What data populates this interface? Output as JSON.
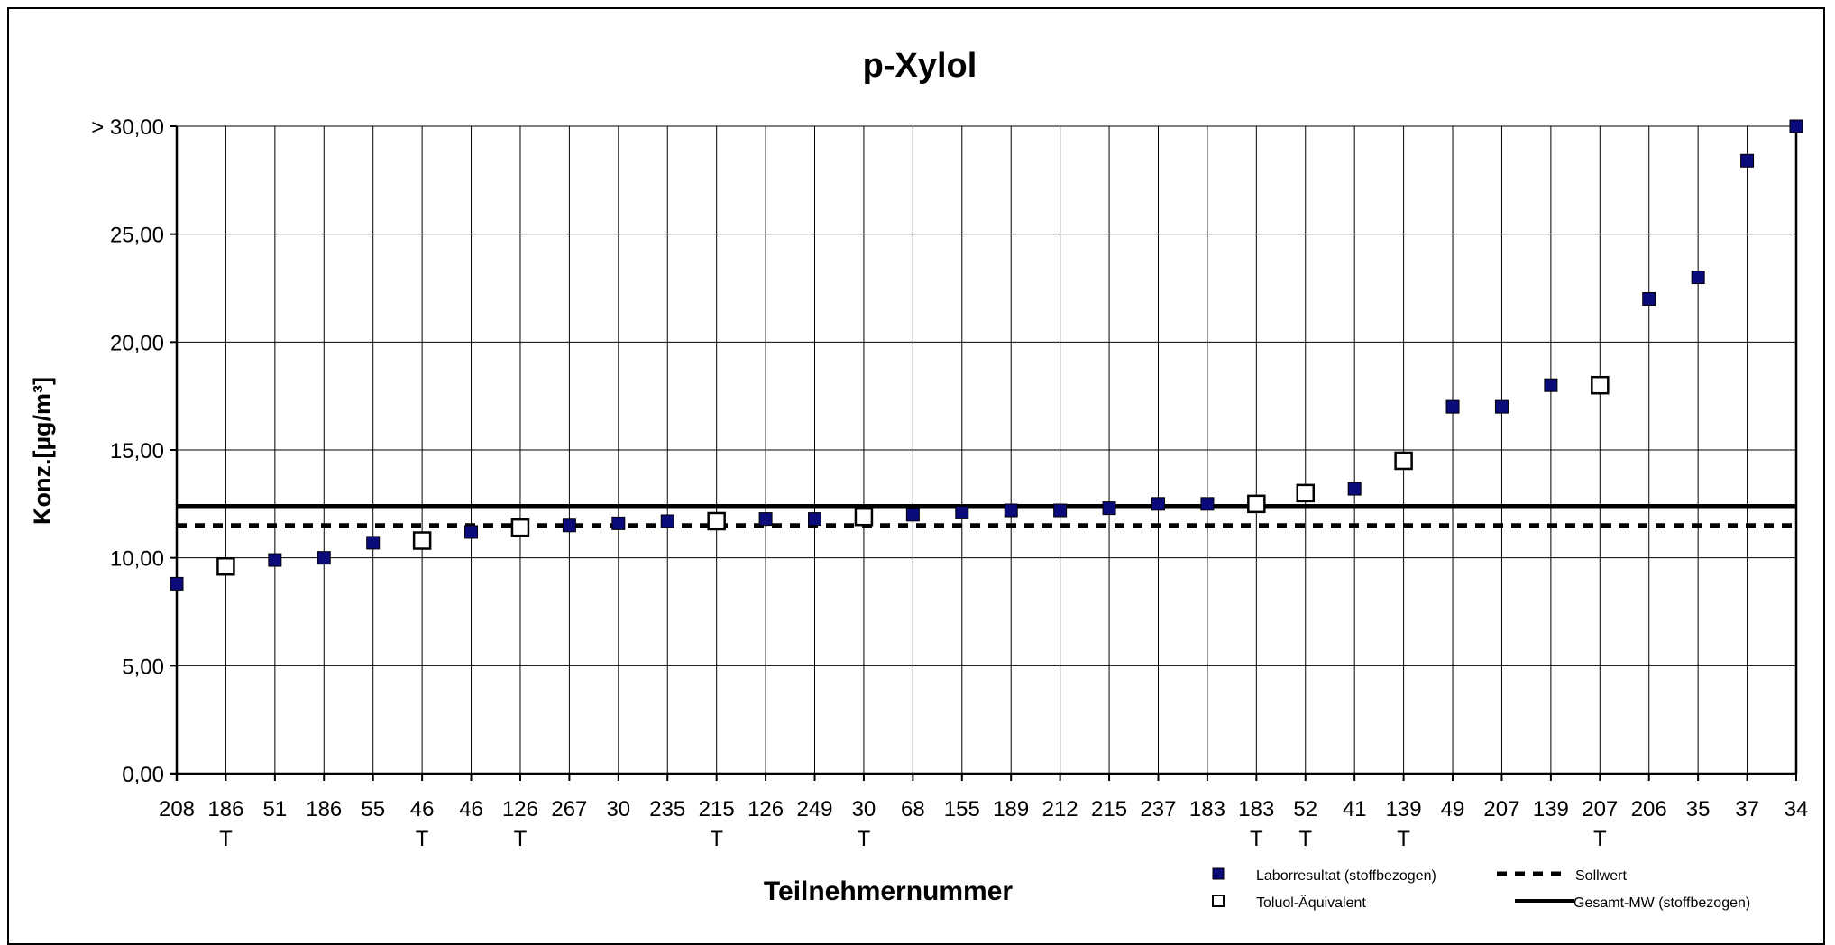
{
  "chart_data": {
    "type": "scatter",
    "title": "p-Xylol",
    "xlabel": "Teilnehmernummer",
    "ylabel": "Konz.[µg/m³]",
    "ylim": [
      0,
      30
    ],
    "yticks": [
      "0,00",
      "5,00",
      "10,00",
      "15,00",
      "20,00",
      "25,00",
      "> 30,00"
    ],
    "grid": true,
    "categories": [
      "208",
      "186",
      "51",
      "186",
      "55",
      "46",
      "46",
      "126",
      "267",
      "30",
      "235",
      "215",
      "126",
      "249",
      "30",
      "68",
      "155",
      "189",
      "212",
      "215",
      "237",
      "183",
      "183",
      "52",
      "41",
      "139",
      "49",
      "207",
      "139",
      "207",
      "206",
      "35",
      "37",
      "34"
    ],
    "sublabels": [
      "",
      "T",
      "",
      "",
      "",
      "T",
      "",
      "T",
      "",
      "",
      "",
      "T",
      "",
      "",
      "T",
      "",
      "",
      "",
      "",
      "",
      "",
      "",
      "T",
      "T",
      "",
      "T",
      "",
      "",
      "",
      "T",
      "",
      "",
      "",
      ""
    ],
    "series": [
      {
        "name": "Laborresultat (stoffbezogen)",
        "marker": "filled-square",
        "color": "#0a0a7a",
        "values": [
          8.8,
          null,
          9.9,
          10.0,
          10.7,
          null,
          11.2,
          null,
          11.5,
          11.6,
          11.7,
          null,
          11.8,
          11.8,
          null,
          12.0,
          12.1,
          12.2,
          12.2,
          12.3,
          12.5,
          12.5,
          null,
          null,
          13.2,
          null,
          17.0,
          17.0,
          18.0,
          null,
          22.0,
          23.0,
          28.4,
          30.0
        ]
      },
      {
        "name": "Toluol-Äquivalent",
        "marker": "open-square",
        "color": "#000000",
        "values": [
          null,
          9.6,
          null,
          null,
          null,
          10.8,
          null,
          11.4,
          null,
          null,
          null,
          11.7,
          null,
          null,
          11.9,
          null,
          null,
          null,
          null,
          null,
          null,
          null,
          12.5,
          13.0,
          null,
          14.5,
          null,
          null,
          null,
          18.0,
          null,
          null,
          null,
          null
        ]
      }
    ],
    "reference_lines": [
      {
        "name": "Sollwert",
        "value": 11.5,
        "style": "dashed"
      },
      {
        "name": "Gesamt-MW (stoffbezogen)",
        "value": 12.4,
        "style": "solid"
      }
    ],
    "legend_position": "bottom-right"
  }
}
